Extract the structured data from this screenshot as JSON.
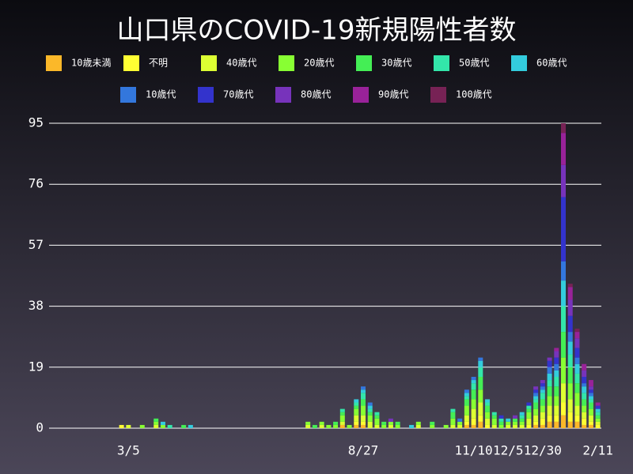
{
  "chart_data": {
    "type": "stacked-bar",
    "title": "山口県のCOVID-19新規陽性者数",
    "categories": [
      null,
      null,
      null,
      null,
      null,
      null,
      null,
      null,
      null,
      null,
      null,
      "3/5",
      null,
      null,
      null,
      null,
      null,
      null,
      null,
      null,
      null,
      null,
      null,
      null,
      null,
      null,
      null,
      null,
      null,
      null,
      null,
      null,
      null,
      null,
      null,
      null,
      null,
      null,
      null,
      null,
      null,
      null,
      null,
      null,
      null,
      "8/27",
      null,
      null,
      null,
      null,
      null,
      null,
      null,
      null,
      null,
      null,
      null,
      null,
      null,
      null,
      null,
      "11/10",
      null,
      null,
      null,
      null,
      "12/5",
      null,
      null,
      null,
      null,
      "12/30",
      null,
      null,
      null,
      null,
      null,
      null,
      null,
      "2/11"
    ],
    "ylim": [
      0,
      95
    ],
    "yticks": [
      0,
      19,
      38,
      57,
      76,
      95
    ],
    "grid": true,
    "series": [
      {
        "name": "10歳未満",
        "color": "#fbb829",
        "values": [
          0,
          0,
          0,
          0,
          0,
          0,
          0,
          0,
          0,
          0,
          0,
          0,
          0,
          0,
          0,
          0,
          0,
          0,
          0,
          0,
          0,
          0,
          0,
          0,
          0,
          0,
          0,
          0,
          0,
          0,
          0,
          0,
          0,
          0,
          0,
          0,
          0,
          0,
          0,
          0,
          0,
          0,
          1,
          0,
          1,
          1,
          0,
          0,
          0,
          0,
          0,
          0,
          0,
          0,
          0,
          0,
          0,
          0,
          0,
          0,
          1,
          1,
          2,
          0,
          0,
          0,
          0,
          0,
          0,
          0,
          1,
          1,
          2,
          2,
          4,
          2,
          2,
          1,
          1,
          0
        ]
      },
      {
        "name": "不明",
        "color": "#ffff33",
        "values": [
          0,
          0,
          0,
          0,
          0,
          0,
          0,
          0,
          0,
          0,
          1,
          0,
          0,
          0,
          0,
          0,
          0,
          0,
          0,
          0,
          0,
          0,
          0,
          0,
          0,
          0,
          0,
          0,
          0,
          0,
          0,
          0,
          0,
          0,
          0,
          0,
          0,
          0,
          0,
          0,
          0,
          0,
          0,
          0,
          1,
          1,
          0,
          0,
          0,
          0,
          0,
          0,
          0,
          0,
          0,
          0,
          0,
          0,
          0,
          0,
          1,
          2,
          2,
          1,
          0,
          0,
          0,
          0,
          0,
          1,
          1,
          2,
          2,
          2,
          4,
          3,
          2,
          2,
          1,
          1
        ]
      },
      {
        "name": "40歳代",
        "color": "#ddff33",
        "values": [
          0,
          0,
          0,
          0,
          0,
          0,
          0,
          0,
          0,
          0,
          0,
          1,
          0,
          0,
          0,
          1,
          0,
          0,
          0,
          0,
          0,
          0,
          0,
          0,
          0,
          0,
          0,
          0,
          0,
          0,
          0,
          0,
          0,
          0,
          0,
          0,
          0,
          1,
          0,
          1,
          0,
          0,
          1,
          0,
          2,
          2,
          2,
          1,
          0,
          1,
          0,
          0,
          0,
          1,
          0,
          0,
          0,
          0,
          1,
          1,
          2,
          3,
          4,
          2,
          1,
          0,
          1,
          1,
          1,
          2,
          2,
          2,
          3,
          3,
          6,
          4,
          3,
          2,
          2,
          1
        ]
      },
      {
        "name": "20歳代",
        "color": "#88ff33",
        "values": [
          0,
          0,
          0,
          0,
          0,
          0,
          0,
          0,
          0,
          0,
          0,
          0,
          0,
          1,
          0,
          1,
          1,
          0,
          0,
          0,
          0,
          0,
          0,
          0,
          0,
          0,
          0,
          0,
          0,
          0,
          0,
          0,
          0,
          0,
          0,
          0,
          0,
          1,
          0,
          1,
          1,
          1,
          2,
          1,
          2,
          3,
          2,
          2,
          1,
          1,
          1,
          0,
          0,
          1,
          0,
          1,
          0,
          1,
          2,
          1,
          3,
          3,
          4,
          2,
          2,
          1,
          1,
          1,
          1,
          2,
          2,
          2,
          3,
          3,
          8,
          5,
          4,
          2,
          2,
          1
        ]
      },
      {
        "name": "30歳代",
        "color": "#44ee55",
        "values": [
          0,
          0,
          0,
          0,
          0,
          0,
          0,
          0,
          0,
          0,
          0,
          0,
          0,
          0,
          0,
          1,
          0,
          0,
          0,
          1,
          0,
          0,
          0,
          0,
          0,
          0,
          0,
          0,
          0,
          0,
          0,
          0,
          0,
          0,
          0,
          0,
          0,
          0,
          1,
          0,
          0,
          1,
          1,
          0,
          1,
          2,
          1,
          1,
          1,
          0,
          1,
          0,
          0,
          0,
          0,
          1,
          0,
          0,
          2,
          0,
          2,
          3,
          4,
          2,
          1,
          1,
          0,
          1,
          1,
          1,
          2,
          2,
          3,
          3,
          8,
          5,
          3,
          2,
          2,
          1
        ]
      },
      {
        "name": "50歳代",
        "color": "#33e6aa",
        "values": [
          0,
          0,
          0,
          0,
          0,
          0,
          0,
          0,
          0,
          0,
          0,
          0,
          0,
          0,
          0,
          0,
          0,
          1,
          0,
          0,
          0,
          0,
          0,
          0,
          0,
          0,
          0,
          0,
          0,
          0,
          0,
          0,
          0,
          0,
          0,
          0,
          0,
          0,
          0,
          0,
          0,
          0,
          1,
          0,
          1,
          2,
          1,
          1,
          0,
          0,
          0,
          0,
          0,
          0,
          0,
          0,
          0,
          0,
          1,
          0,
          1,
          2,
          3,
          1,
          1,
          1,
          0,
          0,
          1,
          1,
          1,
          2,
          2,
          3,
          8,
          4,
          3,
          2,
          1,
          1
        ]
      },
      {
        "name": "60歳代",
        "color": "#33ccdd",
        "values": [
          0,
          0,
          0,
          0,
          0,
          0,
          0,
          0,
          0,
          0,
          0,
          0,
          0,
          0,
          0,
          0,
          1,
          0,
          0,
          0,
          1,
          0,
          0,
          0,
          0,
          0,
          0,
          0,
          0,
          0,
          0,
          0,
          0,
          0,
          0,
          0,
          0,
          0,
          0,
          0,
          0,
          0,
          0,
          0,
          1,
          1,
          1,
          0,
          0,
          0,
          0,
          0,
          1,
          0,
          0,
          0,
          0,
          0,
          0,
          0,
          1,
          1,
          2,
          1,
          0,
          0,
          1,
          0,
          1,
          0,
          1,
          1,
          2,
          2,
          8,
          4,
          3,
          2,
          1,
          1
        ]
      },
      {
        "name": "10歳代",
        "color": "#3377dd",
        "values": [
          0,
          0,
          0,
          0,
          0,
          0,
          0,
          0,
          0,
          0,
          0,
          0,
          0,
          0,
          0,
          0,
          0,
          0,
          0,
          0,
          0,
          0,
          0,
          0,
          0,
          0,
          0,
          0,
          0,
          0,
          0,
          0,
          0,
          0,
          0,
          0,
          0,
          0,
          0,
          0,
          0,
          0,
          0,
          0,
          0,
          1,
          1,
          0,
          0,
          0,
          0,
          0,
          0,
          0,
          0,
          0,
          0,
          0,
          0,
          1,
          1,
          1,
          1,
          0,
          0,
          0,
          0,
          0,
          0,
          0,
          1,
          1,
          2,
          2,
          6,
          3,
          2,
          1,
          1,
          0
        ]
      },
      {
        "name": "70歳代",
        "color": "#3333cc",
        "values": [
          0,
          0,
          0,
          0,
          0,
          0,
          0,
          0,
          0,
          0,
          0,
          0,
          0,
          0,
          0,
          0,
          0,
          0,
          0,
          0,
          0,
          0,
          0,
          0,
          0,
          0,
          0,
          0,
          0,
          0,
          0,
          0,
          0,
          0,
          0,
          0,
          0,
          0,
          0,
          0,
          0,
          0,
          0,
          0,
          0,
          0,
          0,
          0,
          0,
          0,
          0,
          0,
          0,
          0,
          0,
          0,
          0,
          0,
          0,
          0,
          0,
          0,
          0,
          0,
          0,
          1,
          0,
          0,
          0,
          1,
          1,
          1,
          2,
          2,
          20,
          5,
          3,
          2,
          1,
          1
        ]
      },
      {
        "name": "80歳代",
        "color": "#7733bb",
        "values": [
          0,
          0,
          0,
          0,
          0,
          0,
          0,
          0,
          0,
          0,
          0,
          0,
          0,
          0,
          0,
          0,
          0,
          0,
          0,
          0,
          0,
          0,
          0,
          0,
          0,
          0,
          0,
          0,
          0,
          0,
          0,
          0,
          0,
          0,
          0,
          0,
          0,
          0,
          0,
          0,
          0,
          0,
          0,
          0,
          0,
          0,
          0,
          0,
          0,
          1,
          0,
          0,
          0,
          0,
          0,
          0,
          0,
          0,
          0,
          0,
          0,
          0,
          0,
          0,
          0,
          0,
          0,
          1,
          0,
          0,
          1,
          1,
          1,
          2,
          10,
          5,
          3,
          2,
          1,
          0
        ]
      },
      {
        "name": "90歳代",
        "color": "#992299",
        "values": [
          0,
          0,
          0,
          0,
          0,
          0,
          0,
          0,
          0,
          0,
          0,
          0,
          0,
          0,
          0,
          0,
          0,
          0,
          0,
          0,
          0,
          0,
          0,
          0,
          0,
          0,
          0,
          0,
          0,
          0,
          0,
          0,
          0,
          0,
          0,
          0,
          0,
          0,
          0,
          0,
          0,
          0,
          0,
          0,
          0,
          0,
          0,
          0,
          0,
          0,
          0,
          0,
          0,
          0,
          0,
          0,
          0,
          0,
          0,
          0,
          0,
          0,
          0,
          0,
          0,
          0,
          0,
          0,
          0,
          0,
          0,
          0,
          0,
          1,
          10,
          4,
          2,
          2,
          2,
          1
        ]
      },
      {
        "name": "100歳代",
        "color": "#772255",
        "values": [
          0,
          0,
          0,
          0,
          0,
          0,
          0,
          0,
          0,
          0,
          0,
          0,
          0,
          0,
          0,
          0,
          0,
          0,
          0,
          0,
          0,
          0,
          0,
          0,
          0,
          0,
          0,
          0,
          0,
          0,
          0,
          0,
          0,
          0,
          0,
          0,
          0,
          0,
          0,
          0,
          0,
          0,
          0,
          0,
          0,
          0,
          0,
          0,
          0,
          0,
          0,
          0,
          0,
          0,
          0,
          0,
          0,
          0,
          0,
          0,
          0,
          0,
          0,
          0,
          0,
          0,
          0,
          0,
          0,
          0,
          0,
          0,
          0,
          0,
          3,
          1,
          1,
          0,
          0,
          0
        ]
      }
    ]
  }
}
